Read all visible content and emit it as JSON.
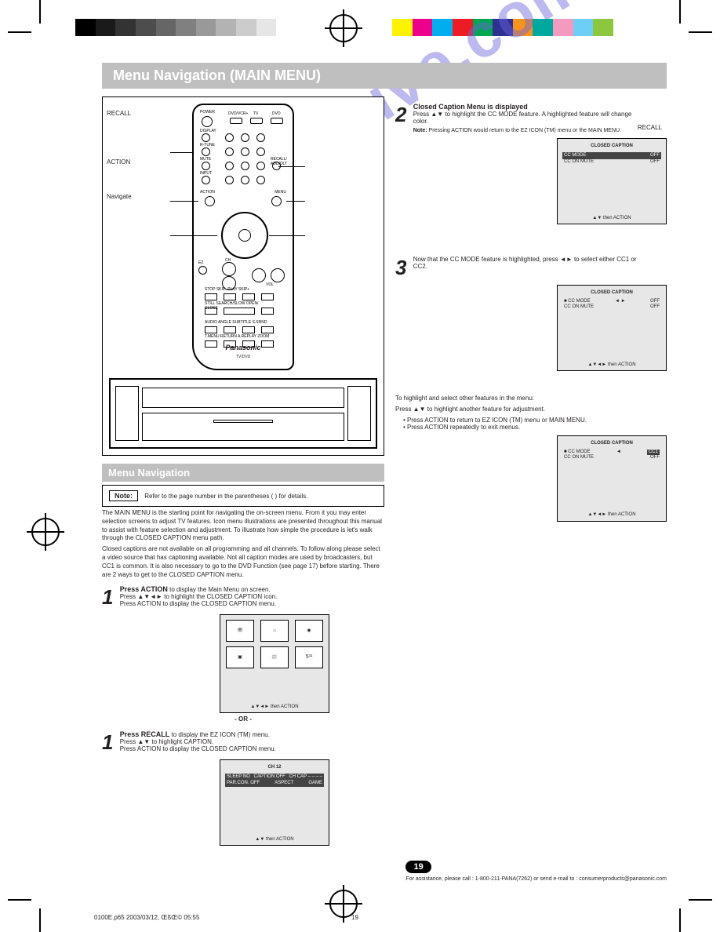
{
  "printer_bars": {
    "grayscale": [
      "#000000",
      "#1a1a1a",
      "#333333",
      "#4d4d4d",
      "#666666",
      "#808080",
      "#999999",
      "#b3b3b3",
      "#cccccc",
      "#e6e6e6",
      "#ffffff"
    ],
    "colors": [
      "#fff200",
      "#ec008c",
      "#00aeef",
      "#ed1c24",
      "#00a651",
      "#2e3192",
      "#f7941d",
      "#00a99d",
      "#f49ac1",
      "#6dcff6",
      "#8dc63f"
    ]
  },
  "page": {
    "title": "Menu Navigation (MAIN MENU)",
    "subhead": "Menu Navigation",
    "note_tag": "Note:",
    "note_text": "Refer to the page number in the parentheses ( ) for details.",
    "intro": [
      "The MAIN MENU is the starting point for navigating the on-screen menu. From it you may enter selection screens to adjust TV features. Icon menu illustrations are presented throughout this manual to assist with feature selection and adjustment. To illustrate how simple the procedure is let's walk through the CLOSED CAPTION menu path.",
      "Closed captions are not available on all programming and all channels. To follow along please select a video source that has captioning available. Not all caption modes are used by broadcasters, but CC1 is common. It is also necessary to go to the DVD Function (see page 17) before starting. There are 2 ways to get to the CLOSED CAPTION menu."
    ],
    "or": "- OR -",
    "stepA": {
      "num": "1",
      "label": "Press ACTION",
      "text": "to display the Main Menu on screen.",
      "sub": [
        "Press ▲▼◄► to highlight the CLOSED CAPTION icon.",
        "Press ACTION to display the CLOSED CAPTION menu."
      ]
    },
    "mainmenu_icons": [
      "picture",
      "tv-icon",
      "wide-icon",
      "cc-box",
      "cc-text",
      "s31"
    ],
    "mainmenu_hint": "▲▼◄► then ACTION",
    "stepB": {
      "num": "1",
      "label": "Press RECALL",
      "text": "to display the EZ ICON (TM) menu.",
      "sub": [
        "Press ▲▼ to highlight CAPTION.",
        "Press ACTION to display the CLOSED CAPTION menu."
      ]
    },
    "ez_menu": {
      "hdr": "CH 12",
      "items": [
        "SLEEP  NO",
        "CAPTION  OFF",
        "CH CAP  – – – –",
        "PAR.CON.  OFF",
        "ASPECT",
        "GAME"
      ],
      "hint": "▲▼ then ACTION"
    },
    "step2": {
      "num": "2",
      "label": "Closed Caption Menu is displayed",
      "text": "Press ▲▼ to highlight the CC MODE feature. A highlighted feature will change color.",
      "note": "Pressing ACTION would return to the EZ ICON (TM) menu or the MAIN MENU."
    },
    "cc_menu1": {
      "hdr": "CLOSED CAPTION",
      "rows": [
        [
          "CC MODE",
          "OFF"
        ],
        [
          "CC ON MUTE",
          "OFF"
        ]
      ],
      "hint": "▲▼ then ACTION"
    },
    "step3": {
      "num": "3",
      "text1": "Now that the CC MODE feature is highlighted, press ◄► to select either CC1 or CC2.",
      "text2": "Press ▲▼ to highlight another feature for adjustment.",
      "bullets": [
        "Press ACTION to return to EZ ICON (TM) menu or MAIN MENU.",
        "Press ACTION repeatedly to exit menus."
      ],
      "intro": "To highlight and select other features in the menu:"
    },
    "cc_menu2": {
      "hdr": "CLOSED CAPTION",
      "rows": [
        [
          "CC MODE",
          "OFF"
        ],
        [
          "CC ON MUTE",
          "OFF"
        ]
      ],
      "hint": "▲▼◄► then ACTION",
      "indicator": "◄ ►"
    },
    "cc_menu3": {
      "hdr": "CLOSED CAPTION",
      "rows": [
        [
          "CC MODE",
          "CC1"
        ],
        [
          "CC ON MUTE",
          "OFF"
        ]
      ],
      "hint": "▲▼◄► then ACTION",
      "sel": "CC1"
    },
    "remote_brand": "Panasonic",
    "remote_model": "TV/DVD",
    "remote_side": {
      "left": [
        "RECALL",
        "ACTION",
        "Navigate"
      ],
      "right": [
        "Navigate",
        "MENU"
      ]
    },
    "page_number": "19",
    "page_sub": "For assistance, please call : 1-800-211-PANA(7262) or send e-mail to : consumerproducts@panasonic.com",
    "footer": "0100E.p65                                                               2003/03/12, ŒßŒ© 05:55",
    "footer_mid": "19",
    "watermark": "manualshive.com"
  }
}
